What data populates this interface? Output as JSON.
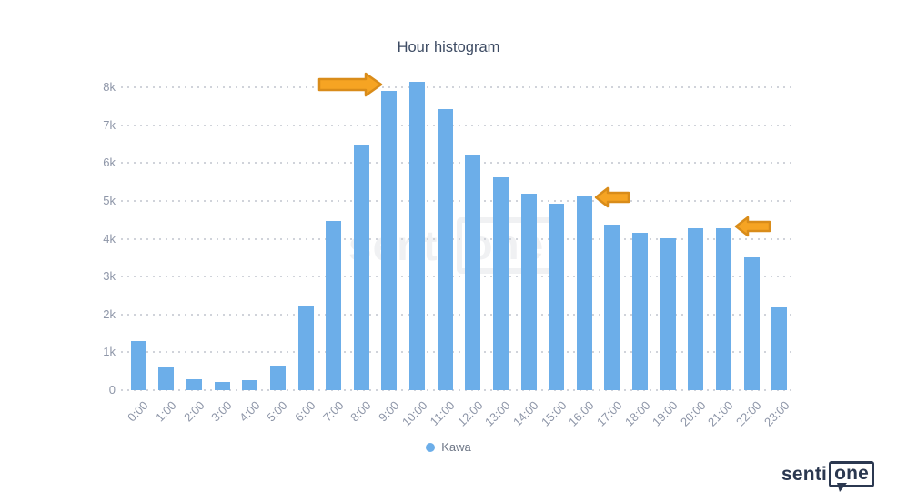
{
  "chart_data": {
    "type": "bar",
    "title": "Hour histogram",
    "categories": [
      "0:00",
      "1:00",
      "2:00",
      "3:00",
      "4:00",
      "5:00",
      "6:00",
      "7:00",
      "8:00",
      "9:00",
      "10:00",
      "11:00",
      "12:00",
      "13:00",
      "14:00",
      "15:00",
      "16:00",
      "17:00",
      "18:00",
      "19:00",
      "20:00",
      "21:00",
      "22:00",
      "23:00"
    ],
    "series": [
      {
        "name": "Kawa",
        "color": "#6caee9",
        "values": [
          1300,
          600,
          300,
          220,
          270,
          620,
          2230,
          4470,
          6480,
          7900,
          8140,
          7420,
          6230,
          5620,
          5190,
          4920,
          5140,
          4370,
          4170,
          4010,
          4280,
          4290,
          3520,
          2190
        ]
      }
    ],
    "xlabel": "",
    "ylabel": "",
    "ylim": [
      0,
      8400
    ],
    "yticks": [
      0,
      1000,
      2000,
      3000,
      4000,
      5000,
      6000,
      7000,
      8000
    ],
    "ytick_labels": [
      "0",
      "1k",
      "2k",
      "3k",
      "4k",
      "5k",
      "6k",
      "7k",
      "8k"
    ],
    "grid": "horizontal-dotted",
    "legend_position": "bottom-center",
    "annotations": [
      {
        "type": "block-arrow",
        "direction": "right",
        "points_at": "9:00 bar"
      },
      {
        "type": "block-arrow",
        "direction": "left",
        "points_at": "16:00 bar"
      },
      {
        "type": "block-arrow",
        "direction": "left",
        "points_at": "21:00 bar"
      }
    ]
  },
  "legend": {
    "label": "Kawa"
  },
  "watermark": {
    "part1": "senti",
    "part2": "one"
  },
  "logo": {
    "part1": "senti",
    "part2": "one"
  },
  "colors": {
    "bar": "#6caee9",
    "title": "#3d4b63",
    "axis_label": "#8e96a8",
    "grid_dot": "#d0d3da",
    "legend_label": "#6d7686",
    "arrow_fill": "#f6a423",
    "arrow_stroke": "#d98c1a",
    "logo_navy": "#2b3850",
    "watermark_gray": "#f0f1f3"
  }
}
